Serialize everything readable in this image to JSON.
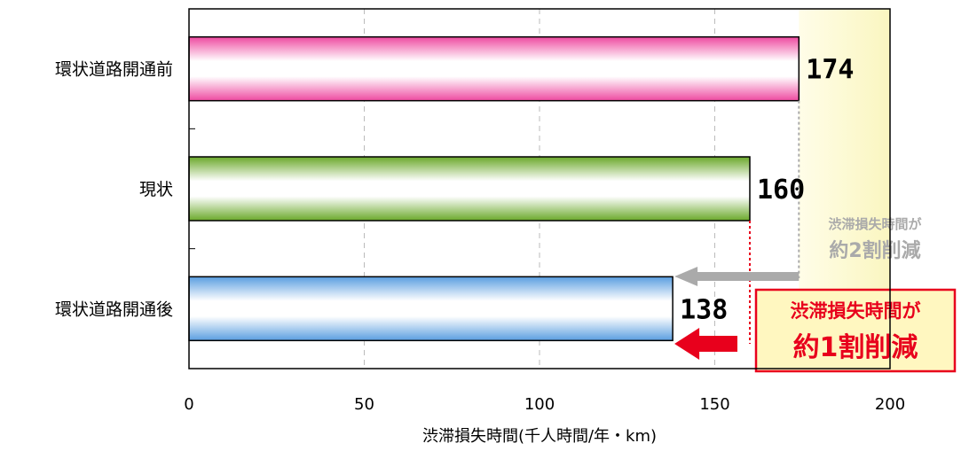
{
  "chart_data": {
    "type": "bar",
    "orientation": "horizontal",
    "categories": [
      "環状道路開通前",
      "現状",
      "環状道路開通後"
    ],
    "values": [
      174,
      160,
      138
    ],
    "bar_colors": [
      "#ee4aa0",
      "#6aa82a",
      "#5a9ee0"
    ],
    "xlim": [
      0,
      200
    ],
    "xticks": [
      0,
      50,
      100,
      150,
      200
    ],
    "xlabel": "渋滞損失時間(千人時間/年・km)",
    "grid": "vertical dashed",
    "highlight_band": {
      "from": 174,
      "to": 200,
      "color": "#fcf9c8"
    },
    "annotations": [
      {
        "line1": "渋滞損失時間が",
        "line2": "約2割削減",
        "from": 174,
        "to": 138,
        "color": "#aaaaaa"
      },
      {
        "line1": "渋滞損失時間が",
        "line2": "約1割削減",
        "from": 160,
        "to": 138,
        "color": "#e8001c",
        "box_fill": "#fff7c0"
      }
    ]
  }
}
